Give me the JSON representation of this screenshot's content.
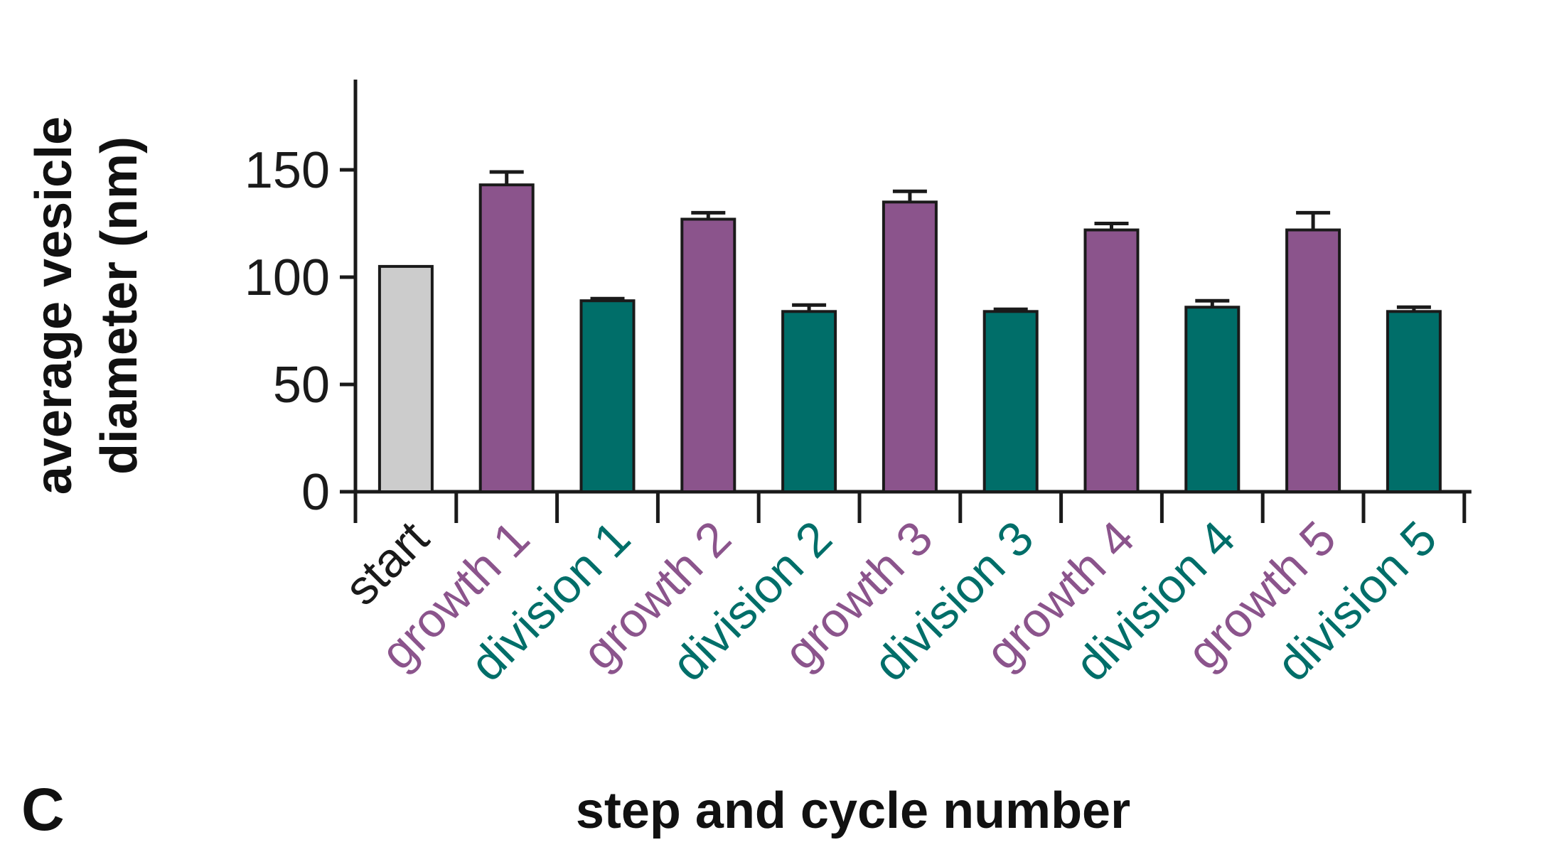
{
  "panel_label": "C",
  "chart_data": {
    "type": "bar",
    "categories": [
      "start",
      "growth 1",
      "division 1",
      "growth 2",
      "division 2",
      "growth 3",
      "division 3",
      "growth 4",
      "division 4",
      "growth 5",
      "division 5"
    ],
    "values": [
      105,
      143,
      89,
      127,
      84,
      135,
      84,
      122,
      86,
      122,
      84
    ],
    "errors": [
      0,
      6,
      1,
      3,
      3,
      5,
      1,
      3,
      3,
      8,
      2
    ],
    "category_colors": [
      "#cccccc",
      "#8b548c",
      "#006e69",
      "#8b548c",
      "#006e69",
      "#8b548c",
      "#006e69",
      "#8b548c",
      "#006e69",
      "#8b548c",
      "#006e69"
    ],
    "label_colors": [
      "#1a1a1a",
      "#8b548c",
      "#006e69",
      "#8b548c",
      "#006e69",
      "#8b548c",
      "#006e69",
      "#8b548c",
      "#006e69",
      "#8b548c",
      "#006e69"
    ],
    "xlabel": "step and cycle number",
    "ylabel_lines": [
      "average vesicle",
      "diameter (nm)"
    ],
    "ylim": [
      0,
      190
    ],
    "yticks": [
      0,
      50,
      100,
      150
    ],
    "grid": false
  }
}
